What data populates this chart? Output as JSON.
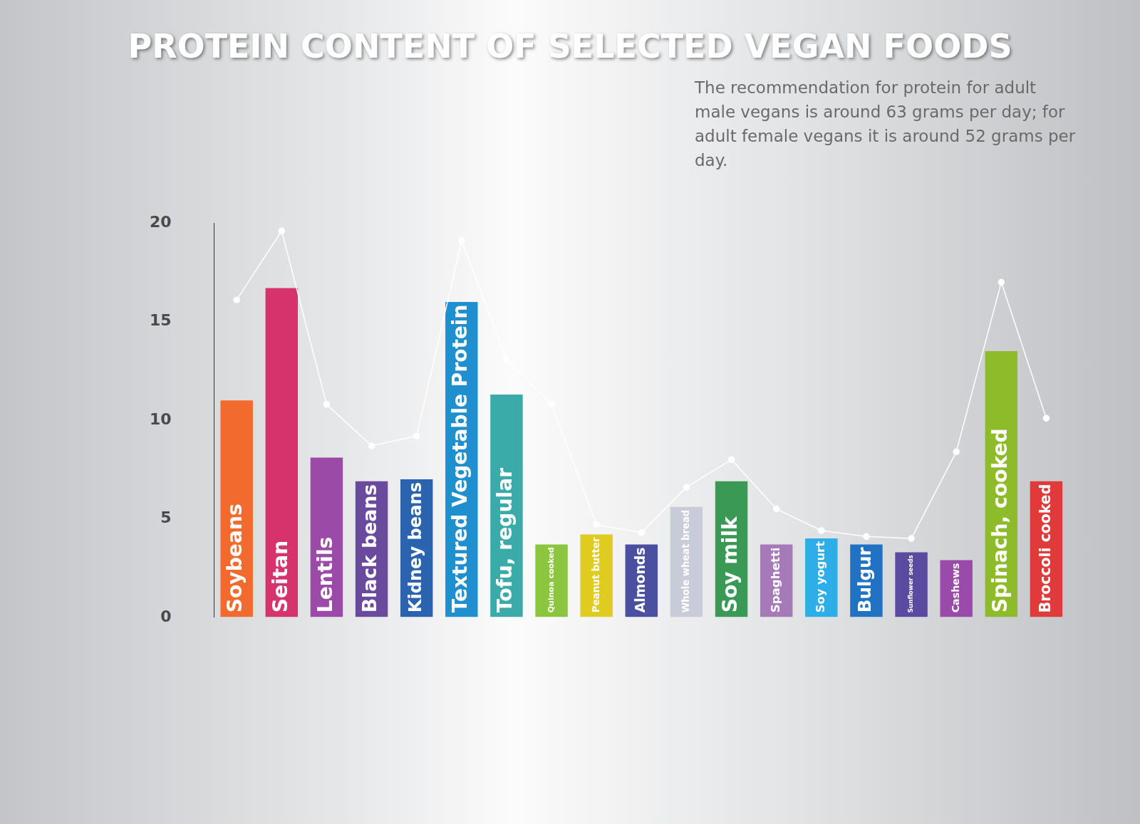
{
  "chart_data": {
    "type": "bar",
    "title": "PROTEIN CONTENT OF SELECTED VEGAN FOODS",
    "annotations": [
      "The recommendation for protein for adult male vegans is around 63 grams per day; for adult female vegans it is around 52 grams per day."
    ],
    "categories": [
      "Soybeans",
      "Seitan",
      "Lentils",
      "Black beans",
      "Kidney beans",
      "Textured Vegetable Protein",
      "Tofu, regular",
      "Quinoa cooked",
      "Peanut butter",
      "Almonds",
      "Whole wheat bread",
      "Soy milk",
      "Spaghetti",
      "Soy yogurt",
      "Bulgur",
      "Sunflower seeds",
      "Cashews",
      "Spinach, cooked",
      "Broccoli cooked"
    ],
    "series": [
      {
        "type": "bar",
        "values": [
          11.0,
          16.7,
          8.1,
          6.9,
          7.0,
          16.0,
          11.3,
          3.7,
          4.2,
          3.7,
          5.6,
          6.9,
          3.7,
          4.0,
          3.7,
          3.3,
          2.9,
          13.5,
          6.9
        ],
        "colors": [
          "#f26a2e",
          "#d6336c",
          "#9b4aa8",
          "#6a4a9c",
          "#2a64b0",
          "#1f8fcf",
          "#3aaba8",
          "#8cc63f",
          "#e0cc20",
          "#4a4fa0",
          "#c8cbd8",
          "#3a9a55",
          "#a67ab8",
          "#2eaee8",
          "#1f72c4",
          "#5a4ba0",
          "#9a4aa8",
          "#8ebb2a",
          "#e03a3a"
        ]
      },
      {
        "type": "line",
        "color": "#ffffff",
        "marker": "circle",
        "values": [
          16.1,
          19.6,
          10.8,
          8.7,
          9.2,
          19.1,
          13.1,
          10.8,
          4.7,
          4.3,
          6.6,
          8.0,
          5.5,
          4.4,
          4.1,
          4.0,
          8.4,
          17.0,
          10.1
        ]
      }
    ],
    "ylim": [
      0,
      20
    ],
    "yticks": [
      0,
      5,
      10,
      15,
      20
    ],
    "grid": false,
    "legend": false
  }
}
